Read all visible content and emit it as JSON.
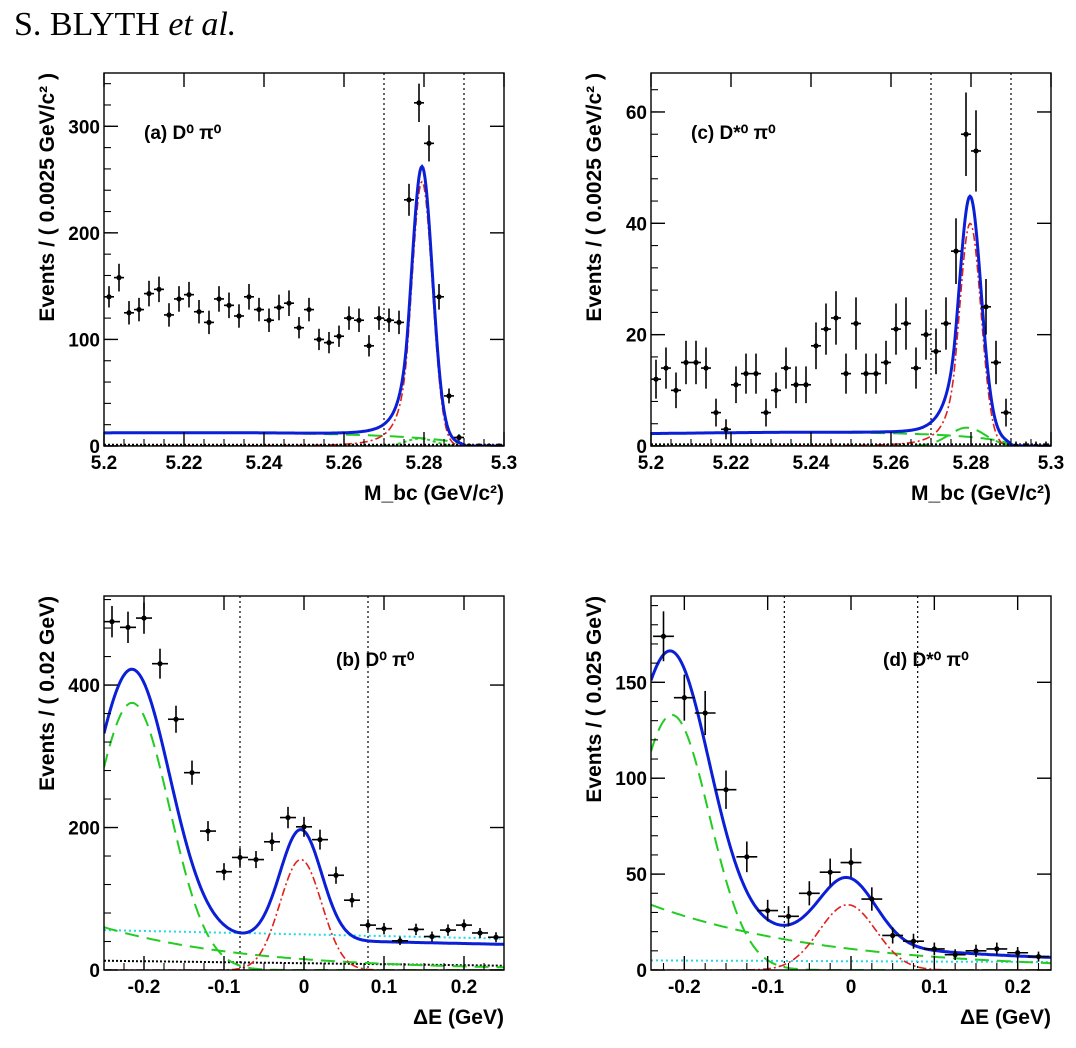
{
  "header": {
    "author": "S. BLYTH",
    "etal": "et al."
  },
  "colors": {
    "total_fit": "#0a1fd6",
    "signal": "#e0201c",
    "background": "#22cc22",
    "peaking": "#22cc22",
    "qqbar": "#22d8e8",
    "data": "#000000",
    "cut_lines": "#000000"
  },
  "chart_data": [
    {
      "id": "a",
      "type": "scatter",
      "label": "(a) D⁰ π⁰",
      "xlabel": "M_bc (GeV/c²)",
      "ylabel": "Events / ( 0.0025 GeV/c² )",
      "xlim": [
        5.2,
        5.3
      ],
      "ylim": [
        0,
        350
      ],
      "xticks": [
        5.2,
        5.22,
        5.24,
        5.26,
        5.28,
        5.3
      ],
      "yticks": [
        0,
        100,
        200,
        300
      ],
      "xtick_labels": [
        "5.2",
        "5.22",
        "5.24",
        "5.26",
        "5.28",
        "5.3"
      ],
      "ytick_labels": [
        "0",
        "100",
        "200",
        "300"
      ],
      "cut_lines": [
        5.27,
        5.29
      ],
      "bin_halfwidth": 0.00125,
      "data_points": [
        [
          5.20125,
          140,
          10
        ],
        [
          5.20375,
          158,
          13
        ],
        [
          5.20625,
          125,
          11
        ],
        [
          5.20875,
          128,
          11
        ],
        [
          5.21125,
          143,
          12
        ],
        [
          5.21375,
          147,
          12
        ],
        [
          5.21625,
          123,
          11
        ],
        [
          5.21875,
          138,
          12
        ],
        [
          5.22125,
          142,
          12
        ],
        [
          5.22375,
          126,
          11
        ],
        [
          5.22625,
          116,
          11
        ],
        [
          5.22875,
          138,
          12
        ],
        [
          5.23125,
          132,
          12
        ],
        [
          5.23375,
          122,
          11
        ],
        [
          5.23625,
          140,
          12
        ],
        [
          5.23875,
          128,
          11
        ],
        [
          5.24125,
          118,
          11
        ],
        [
          5.24375,
          130,
          12
        ],
        [
          5.24625,
          134,
          12
        ],
        [
          5.24875,
          111,
          10
        ],
        [
          5.25125,
          128,
          11
        ],
        [
          5.25375,
          100,
          10
        ],
        [
          5.25625,
          97,
          10
        ],
        [
          5.25875,
          103,
          10
        ],
        [
          5.26125,
          120,
          11
        ],
        [
          5.26375,
          118,
          11
        ],
        [
          5.26625,
          94,
          10
        ],
        [
          5.26875,
          120,
          11
        ],
        [
          5.27125,
          118,
          11
        ],
        [
          5.27375,
          116,
          11
        ],
        [
          5.27625,
          231,
          15
        ],
        [
          5.27875,
          322,
          18
        ],
        [
          5.28125,
          284,
          17
        ],
        [
          5.28375,
          140,
          12
        ],
        [
          5.28625,
          47,
          7
        ],
        [
          5.28875,
          8,
          3
        ],
        [
          5.29125,
          0,
          1
        ],
        [
          5.29375,
          0,
          1
        ],
        [
          5.29625,
          0,
          1
        ],
        [
          5.29875,
          0,
          1
        ]
      ]
    },
    {
      "id": "c",
      "type": "scatter",
      "label": "(c) D*⁰ π⁰",
      "xlabel": "M_bc (GeV/c²)",
      "ylabel": "Events / ( 0.0025 GeV/c² )",
      "xlim": [
        5.2,
        5.3
      ],
      "ylim": [
        0,
        67
      ],
      "xticks": [
        5.2,
        5.22,
        5.24,
        5.26,
        5.28,
        5.3
      ],
      "yticks": [
        0,
        20,
        40,
        60
      ],
      "xtick_labels": [
        "5.2",
        "5.22",
        "5.24",
        "5.26",
        "5.28",
        "5.3"
      ],
      "ytick_labels": [
        "0",
        "20",
        "40",
        "60"
      ],
      "cut_lines": [
        5.27,
        5.29
      ],
      "bin_halfwidth": 0.00125,
      "data_points": [
        [
          5.20125,
          12,
          3.5
        ],
        [
          5.20375,
          14,
          3.7
        ],
        [
          5.20625,
          10,
          3.2
        ],
        [
          5.20875,
          15,
          3.9
        ],
        [
          5.21125,
          15,
          3.9
        ],
        [
          5.21375,
          14,
          3.7
        ],
        [
          5.21625,
          6,
          2.5
        ],
        [
          5.21875,
          3,
          1.8
        ],
        [
          5.22125,
          11,
          3.3
        ],
        [
          5.22375,
          13,
          3.6
        ],
        [
          5.22625,
          13,
          3.6
        ],
        [
          5.22875,
          6,
          2.5
        ],
        [
          5.23125,
          10,
          3.2
        ],
        [
          5.23375,
          14,
          3.7
        ],
        [
          5.23625,
          11,
          3.3
        ],
        [
          5.23875,
          11,
          3.3
        ],
        [
          5.24125,
          18,
          4.2
        ],
        [
          5.24375,
          21,
          4.6
        ],
        [
          5.24625,
          23,
          4.8
        ],
        [
          5.24875,
          13,
          3.6
        ],
        [
          5.25125,
          22,
          4.7
        ],
        [
          5.25375,
          13,
          3.6
        ],
        [
          5.25625,
          13,
          3.6
        ],
        [
          5.25875,
          15,
          3.9
        ],
        [
          5.26125,
          21,
          4.6
        ],
        [
          5.26375,
          22,
          4.7
        ],
        [
          5.26625,
          14,
          3.7
        ],
        [
          5.26875,
          20,
          4.5
        ],
        [
          5.27125,
          17,
          4.1
        ],
        [
          5.27375,
          22,
          4.7
        ],
        [
          5.27625,
          35,
          5.9
        ],
        [
          5.27875,
          56,
          7.5
        ],
        [
          5.28125,
          53,
          7.3
        ],
        [
          5.28375,
          25,
          5
        ],
        [
          5.28625,
          15,
          3.9
        ],
        [
          5.28875,
          6,
          2.5
        ],
        [
          5.29125,
          0,
          0.8
        ],
        [
          5.29375,
          0,
          0.8
        ],
        [
          5.29625,
          0,
          0.8
        ],
        [
          5.29875,
          0,
          0.8
        ]
      ]
    },
    {
      "id": "b",
      "type": "scatter",
      "label": "(b) D⁰ π⁰",
      "xlabel": "ΔE (GeV)",
      "ylabel": "Events / ( 0.02 GeV)",
      "xlim": [
        -0.25,
        0.25
      ],
      "ylim": [
        0,
        525
      ],
      "xticks": [
        -0.2,
        -0.1,
        0,
        0.1,
        0.2
      ],
      "yticks": [
        0,
        200,
        400
      ],
      "xtick_labels": [
        "-0.2",
        "-0.1",
        "0",
        "0.1",
        "0.2"
      ],
      "ytick_labels": [
        "0",
        "200",
        "400"
      ],
      "cut_lines": [
        -0.08,
        0.08
      ],
      "bin_halfwidth": 0.01,
      "data_points": [
        [
          -0.24,
          489,
          22
        ],
        [
          -0.22,
          481,
          22
        ],
        [
          -0.2,
          494,
          22
        ],
        [
          -0.18,
          430,
          21
        ],
        [
          -0.16,
          352,
          19
        ],
        [
          -0.14,
          277,
          17
        ],
        [
          -0.12,
          195,
          14
        ],
        [
          -0.1,
          138,
          12
        ],
        [
          -0.08,
          158,
          13
        ],
        [
          -0.06,
          155,
          12
        ],
        [
          -0.04,
          180,
          13
        ],
        [
          -0.02,
          214,
          15
        ],
        [
          0,
          201,
          14
        ],
        [
          0.02,
          183,
          14
        ],
        [
          0.04,
          133,
          12
        ],
        [
          0.06,
          98,
          10
        ],
        [
          0.08,
          63,
          8
        ],
        [
          0.1,
          58,
          8
        ],
        [
          0.12,
          41,
          6
        ],
        [
          0.14,
          57,
          8
        ],
        [
          0.16,
          47,
          7
        ],
        [
          0.18,
          56,
          8
        ],
        [
          0.2,
          63,
          8
        ],
        [
          0.22,
          52,
          7
        ],
        [
          0.24,
          46,
          7
        ]
      ]
    },
    {
      "id": "d",
      "type": "scatter",
      "label": "(d) D*⁰ π⁰",
      "xlabel": "ΔE (GeV)",
      "ylabel": "Events / ( 0.025 GeV)",
      "xlim": [
        -0.24,
        0.24
      ],
      "ylim": [
        0,
        195
      ],
      "xticks": [
        -0.2,
        -0.1,
        0,
        0.1,
        0.2
      ],
      "yticks": [
        0,
        50,
        100,
        150
      ],
      "xtick_labels": [
        "-0.2",
        "-0.1",
        "0",
        "0.1",
        "0.2"
      ],
      "ytick_labels": [
        "0",
        "50",
        "100",
        "150"
      ],
      "cut_lines": [
        -0.08,
        0.08
      ],
      "bin_halfwidth": 0.0125,
      "data_points": [
        [
          -0.225,
          174,
          13
        ],
        [
          -0.2,
          142,
          12
        ],
        [
          -0.175,
          134,
          11.5
        ],
        [
          -0.15,
          94,
          10
        ],
        [
          -0.125,
          59,
          8
        ],
        [
          -0.1,
          31,
          5.6
        ],
        [
          -0.075,
          28,
          5.3
        ],
        [
          -0.05,
          40,
          6.3
        ],
        [
          -0.025,
          51,
          7.1
        ],
        [
          0,
          56,
          7.5
        ],
        [
          0.025,
          37,
          6.1
        ],
        [
          0.05,
          18,
          4.2
        ],
        [
          0.075,
          15,
          3.9
        ],
        [
          0.1,
          11,
          3.3
        ],
        [
          0.125,
          8,
          2.8
        ],
        [
          0.15,
          10,
          3.2
        ],
        [
          0.175,
          11,
          3.3
        ],
        [
          0.2,
          9,
          3
        ],
        [
          0.225,
          7,
          2.6
        ]
      ]
    }
  ]
}
